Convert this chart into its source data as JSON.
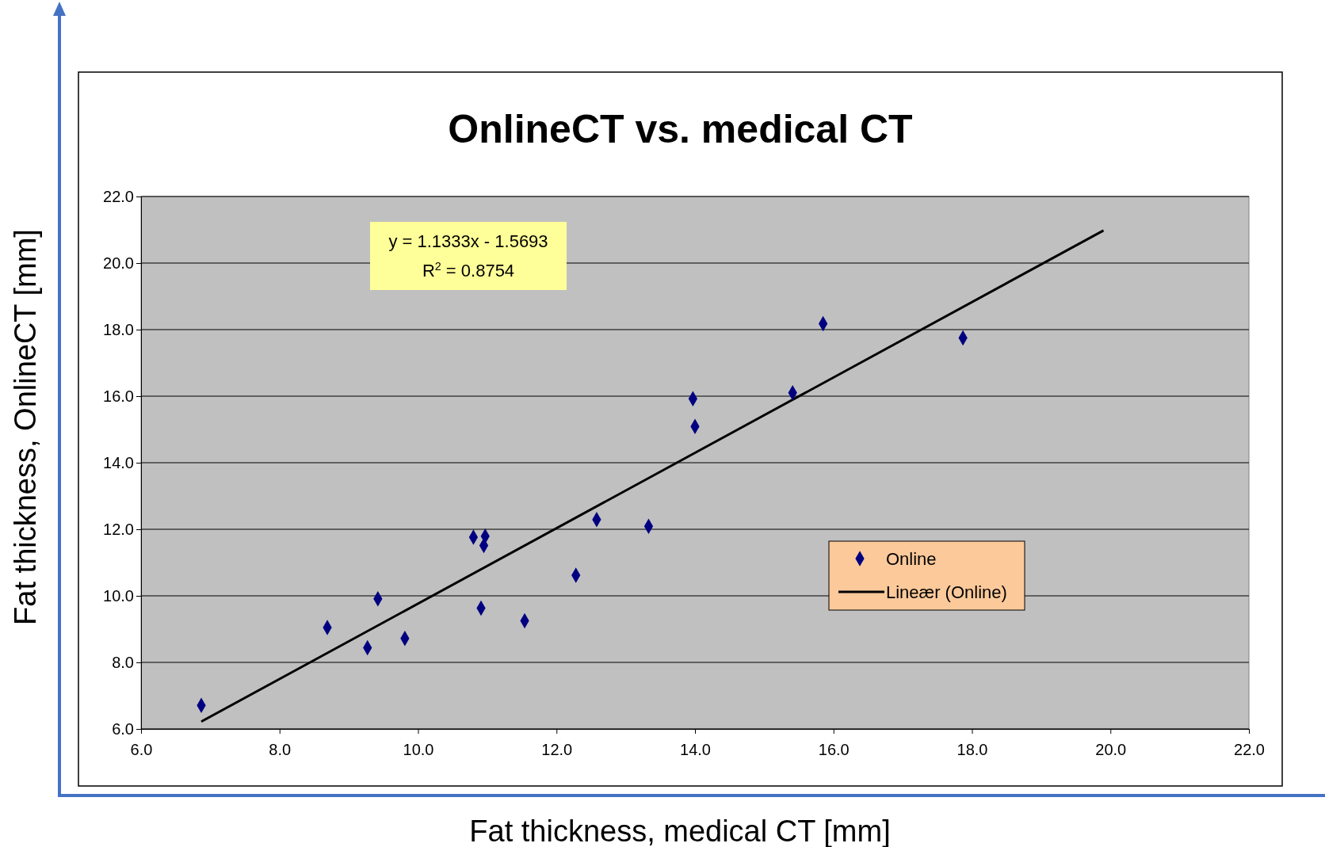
{
  "chart_data": {
    "type": "scatter",
    "title": "OnlineCT vs. medical CT",
    "xlabel": "Fat thickness, medical CT [mm]",
    "ylabel": "Fat thickness, OnlineCT [mm]",
    "annotations": [
      "y = 1.1333x - 1.5693",
      "R$^{2}$ = 0.8754"
    ],
    "xlim": [
      6,
      22
    ],
    "xticks": [
      {
        "value": 6,
        "label": "6.0"
      },
      {
        "value": 8,
        "label": "8.0"
      },
      {
        "value": 10,
        "label": "10.0"
      },
      {
        "value": 12,
        "label": "12.0"
      },
      {
        "value": 14,
        "label": "14.0"
      },
      {
        "value": 16,
        "label": "16.0"
      },
      {
        "value": 18,
        "label": "18.0"
      },
      {
        "value": 20,
        "label": "20.0"
      },
      {
        "value": 22,
        "label": "22.0"
      }
    ],
    "ylim": [
      6,
      22
    ],
    "yticks": [
      {
        "value": 6,
        "label": "6.0"
      },
      {
        "value": 8,
        "label": "8.0"
      },
      {
        "value": 10,
        "label": "10.0"
      },
      {
        "value": 12,
        "label": "12.0"
      },
      {
        "value": 14,
        "label": "14.0"
      },
      {
        "value": 16,
        "label": "16.0"
      },
      {
        "value": 18,
        "label": "18.0"
      },
      {
        "value": 20,
        "label": "20.0"
      },
      {
        "value": 22,
        "label": "22.0"
      }
    ],
    "grid": "y",
    "legend": "right",
    "marker": "diamond",
    "series": [
      {
        "name": "Online",
        "type": "scatter",
        "color": "#000080",
        "x": [
          6.87,
          8.69,
          9.27,
          9.42,
          9.81,
          10.8,
          10.97,
          10.95,
          10.91,
          11.54,
          12.28,
          12.58,
          13.33,
          13.97,
          14.0,
          15.41,
          15.85,
          17.87
        ],
        "values": [
          6.71,
          9.05,
          8.44,
          9.91,
          8.72,
          11.76,
          11.79,
          11.51,
          9.63,
          9.25,
          10.62,
          12.29,
          12.09,
          15.92,
          15.09,
          16.1,
          18.18,
          17.75
        ]
      },
      {
        "name": "Lineær (Online)",
        "type": "line",
        "color": "#000000",
        "line_style": "solid",
        "marker": "none",
        "x": [
          6.87,
          19.9
        ],
        "values": [
          6.22,
          20.98
        ]
      }
    ]
  }
}
